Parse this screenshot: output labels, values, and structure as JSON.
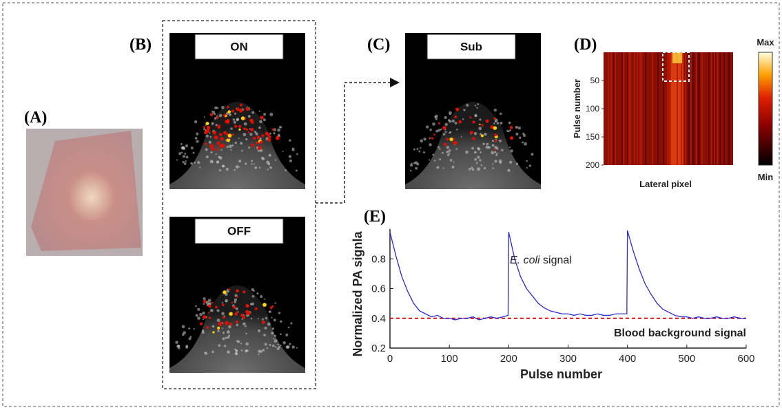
{
  "panels": {
    "a": "(A)",
    "b": "(B)",
    "c": "(C)",
    "d": "(D)",
    "e": "(E)"
  },
  "images": {
    "on": "ON",
    "off": "OFF",
    "sub": "Sub"
  },
  "heatmap": {
    "y_label": "Pulse number",
    "x_label": "Lateral pixel",
    "yticks": [
      50,
      100,
      150,
      200
    ],
    "ylim": [
      0,
      200
    ],
    "colorbar_max": "Max",
    "colorbar_min": "Min"
  },
  "chart_data": {
    "type": "line",
    "x_label": "Pulse number",
    "y_label": "Normalized PA signla",
    "xlim": [
      0,
      600
    ],
    "ylim": [
      0.2,
      1.0
    ],
    "xticks": [
      0,
      100,
      200,
      300,
      400,
      500,
      600
    ],
    "yticks": [
      0.2,
      0.4,
      0.6,
      0.8
    ],
    "annotations": [
      "E. coli",
      "signal",
      "Blood background signal"
    ],
    "reference_line": {
      "value": 0.4,
      "color": "#e01010"
    },
    "x": [
      0,
      10,
      20,
      30,
      40,
      50,
      60,
      70,
      80,
      90,
      100,
      110,
      120,
      130,
      140,
      150,
      160,
      170,
      180,
      190,
      199,
      200,
      210,
      220,
      230,
      240,
      250,
      260,
      270,
      280,
      290,
      300,
      310,
      320,
      330,
      340,
      350,
      360,
      370,
      380,
      390,
      399,
      400,
      410,
      420,
      430,
      440,
      450,
      460,
      470,
      480,
      490,
      500,
      510,
      520,
      530,
      540,
      550,
      560,
      570,
      580,
      590,
      600
    ],
    "series": [
      {
        "color": "#2a2ad0",
        "values": [
          0.98,
          0.82,
          0.68,
          0.58,
          0.5,
          0.45,
          0.43,
          0.41,
          0.42,
          0.4,
          0.4,
          0.39,
          0.4,
          0.4,
          0.41,
          0.39,
          0.4,
          0.41,
          0.4,
          0.41,
          0.42,
          0.98,
          0.8,
          0.68,
          0.6,
          0.55,
          0.5,
          0.47,
          0.45,
          0.44,
          0.43,
          0.43,
          0.42,
          0.43,
          0.42,
          0.42,
          0.43,
          0.42,
          0.42,
          0.43,
          0.43,
          0.43,
          0.99,
          0.85,
          0.73,
          0.63,
          0.56,
          0.5,
          0.46,
          0.44,
          0.42,
          0.41,
          0.41,
          0.4,
          0.41,
          0.4,
          0.4,
          0.41,
          0.4,
          0.4,
          0.41,
          0.4,
          0.4
        ]
      }
    ]
  }
}
